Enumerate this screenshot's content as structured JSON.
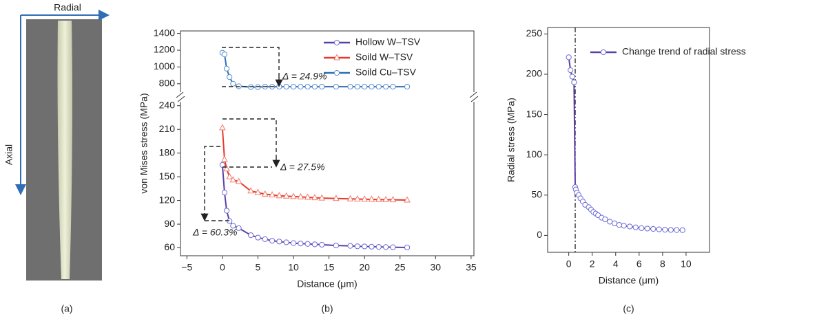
{
  "figure_a": {
    "radial_label": "Radial",
    "axial_label": "Axial",
    "panel_label": "(a)"
  },
  "chart_data": [
    {
      "type": "line",
      "panel_label": "(b)",
      "x_label": "Distance (μm)",
      "y_label": "von Mises stress (MPa)",
      "xlim": [
        -5.9,
        35.4
      ],
      "xticks": [
        {
          "value": -5,
          "label": "−5"
        },
        0,
        5,
        10,
        15,
        20,
        25,
        30,
        35
      ],
      "ylim": [
        50,
        245
      ],
      "yticks": [
        60,
        90,
        120,
        150,
        180,
        210,
        240
      ],
      "ylim_upper": [
        700,
        1430
      ],
      "yticks_upper": [
        800,
        1000,
        1200,
        1400
      ],
      "annotations": [
        "Δ = 24.9%",
        "Δ = 27.5%",
        "Δ = 60.3%"
      ],
      "series": [
        {
          "name": "Hollow W–TSV",
          "color": "#5b3fa8",
          "marker_color": "#6b6bd6",
          "marker": "circle",
          "x": [
            0,
            0.3,
            0.6,
            1,
            1.5,
            2.3,
            4,
            5,
            6,
            7,
            8,
            9,
            10,
            11,
            12,
            13,
            14,
            16,
            18,
            19,
            20,
            21,
            22,
            23,
            24,
            26
          ],
          "values": [
            165,
            130,
            107,
            94,
            88,
            85,
            76,
            73,
            71,
            69,
            68,
            67,
            66,
            65.5,
            65,
            64.5,
            64,
            63,
            62.5,
            62,
            61.8,
            61.5,
            61.2,
            61,
            60.8,
            60.5
          ]
        },
        {
          "name": "Soild W–TSV",
          "color": "#e8392a",
          "marker_color": "#f07a6a",
          "marker": "triangle",
          "x": [
            0,
            0.3,
            0.6,
            1,
            1.5,
            2.3,
            4,
            5,
            6,
            7,
            8,
            9,
            10,
            11,
            12,
            13,
            14,
            16,
            18,
            19,
            20,
            21,
            22,
            23,
            24,
            26
          ],
          "values": [
            212,
            172,
            160,
            150,
            146,
            144,
            132,
            130,
            128,
            127,
            126,
            125.5,
            125,
            124.5,
            124,
            123.5,
            123,
            122.5,
            122,
            121.8,
            121.6,
            121.4,
            121.2,
            121,
            120.8,
            120.5
          ]
        },
        {
          "name": "Soild Cu–TSV",
          "color": "#2f6db5",
          "marker_color": "#5b8fd0",
          "marker": "circle",
          "axis": "upper",
          "x": [
            0,
            0.3,
            0.6,
            1,
            1.5,
            2.3,
            4,
            5,
            6,
            7,
            8,
            9,
            10,
            11,
            12,
            13,
            14,
            16,
            18,
            19,
            20,
            21,
            22,
            23,
            24,
            26
          ],
          "values": [
            1170,
            1150,
            980,
            880,
            800,
            770,
            760,
            760,
            765,
            765,
            765,
            765,
            765,
            765,
            765,
            765,
            765,
            765,
            765,
            765,
            765,
            765,
            765,
            765,
            765,
            765
          ]
        }
      ]
    },
    {
      "type": "line",
      "panel_label": "(c)",
      "x_label": "Distance (μm)",
      "y_label": "Radial stress (MPa)",
      "xlim": [
        -1.8,
        12
      ],
      "xticks": [
        0,
        2,
        4,
        6,
        8,
        10
      ],
      "ylim": [
        -21,
        258
      ],
      "yticks": [
        0,
        50,
        100,
        150,
        200,
        250
      ],
      "vline": 0.55,
      "series": [
        {
          "name": "Change trend of radial stress",
          "color": "#5b3fa8",
          "marker_color": "#6b6bd6",
          "marker": "circle",
          "x": [
            0,
            0.15,
            0.3,
            0.45,
            0.55,
            0.6,
            0.7,
            0.85,
            1,
            1.2,
            1.4,
            1.7,
            1.9,
            2.1,
            2.3,
            2.5,
            2.8,
            3.1,
            3.5,
            3.9,
            4.3,
            4.7,
            5.2,
            5.7,
            6.2,
            6.7,
            7.2,
            7.7,
            8.2,
            8.7,
            9.2,
            9.7
          ],
          "values": [
            221,
            205,
            197,
            190,
            60,
            57,
            53,
            50,
            46,
            42,
            38,
            35,
            32,
            29,
            27,
            25,
            22,
            20,
            17,
            15,
            13,
            12,
            11,
            10,
            9,
            8.5,
            8,
            7.5,
            7,
            6.8,
            6.6,
            6.5
          ]
        }
      ]
    }
  ]
}
